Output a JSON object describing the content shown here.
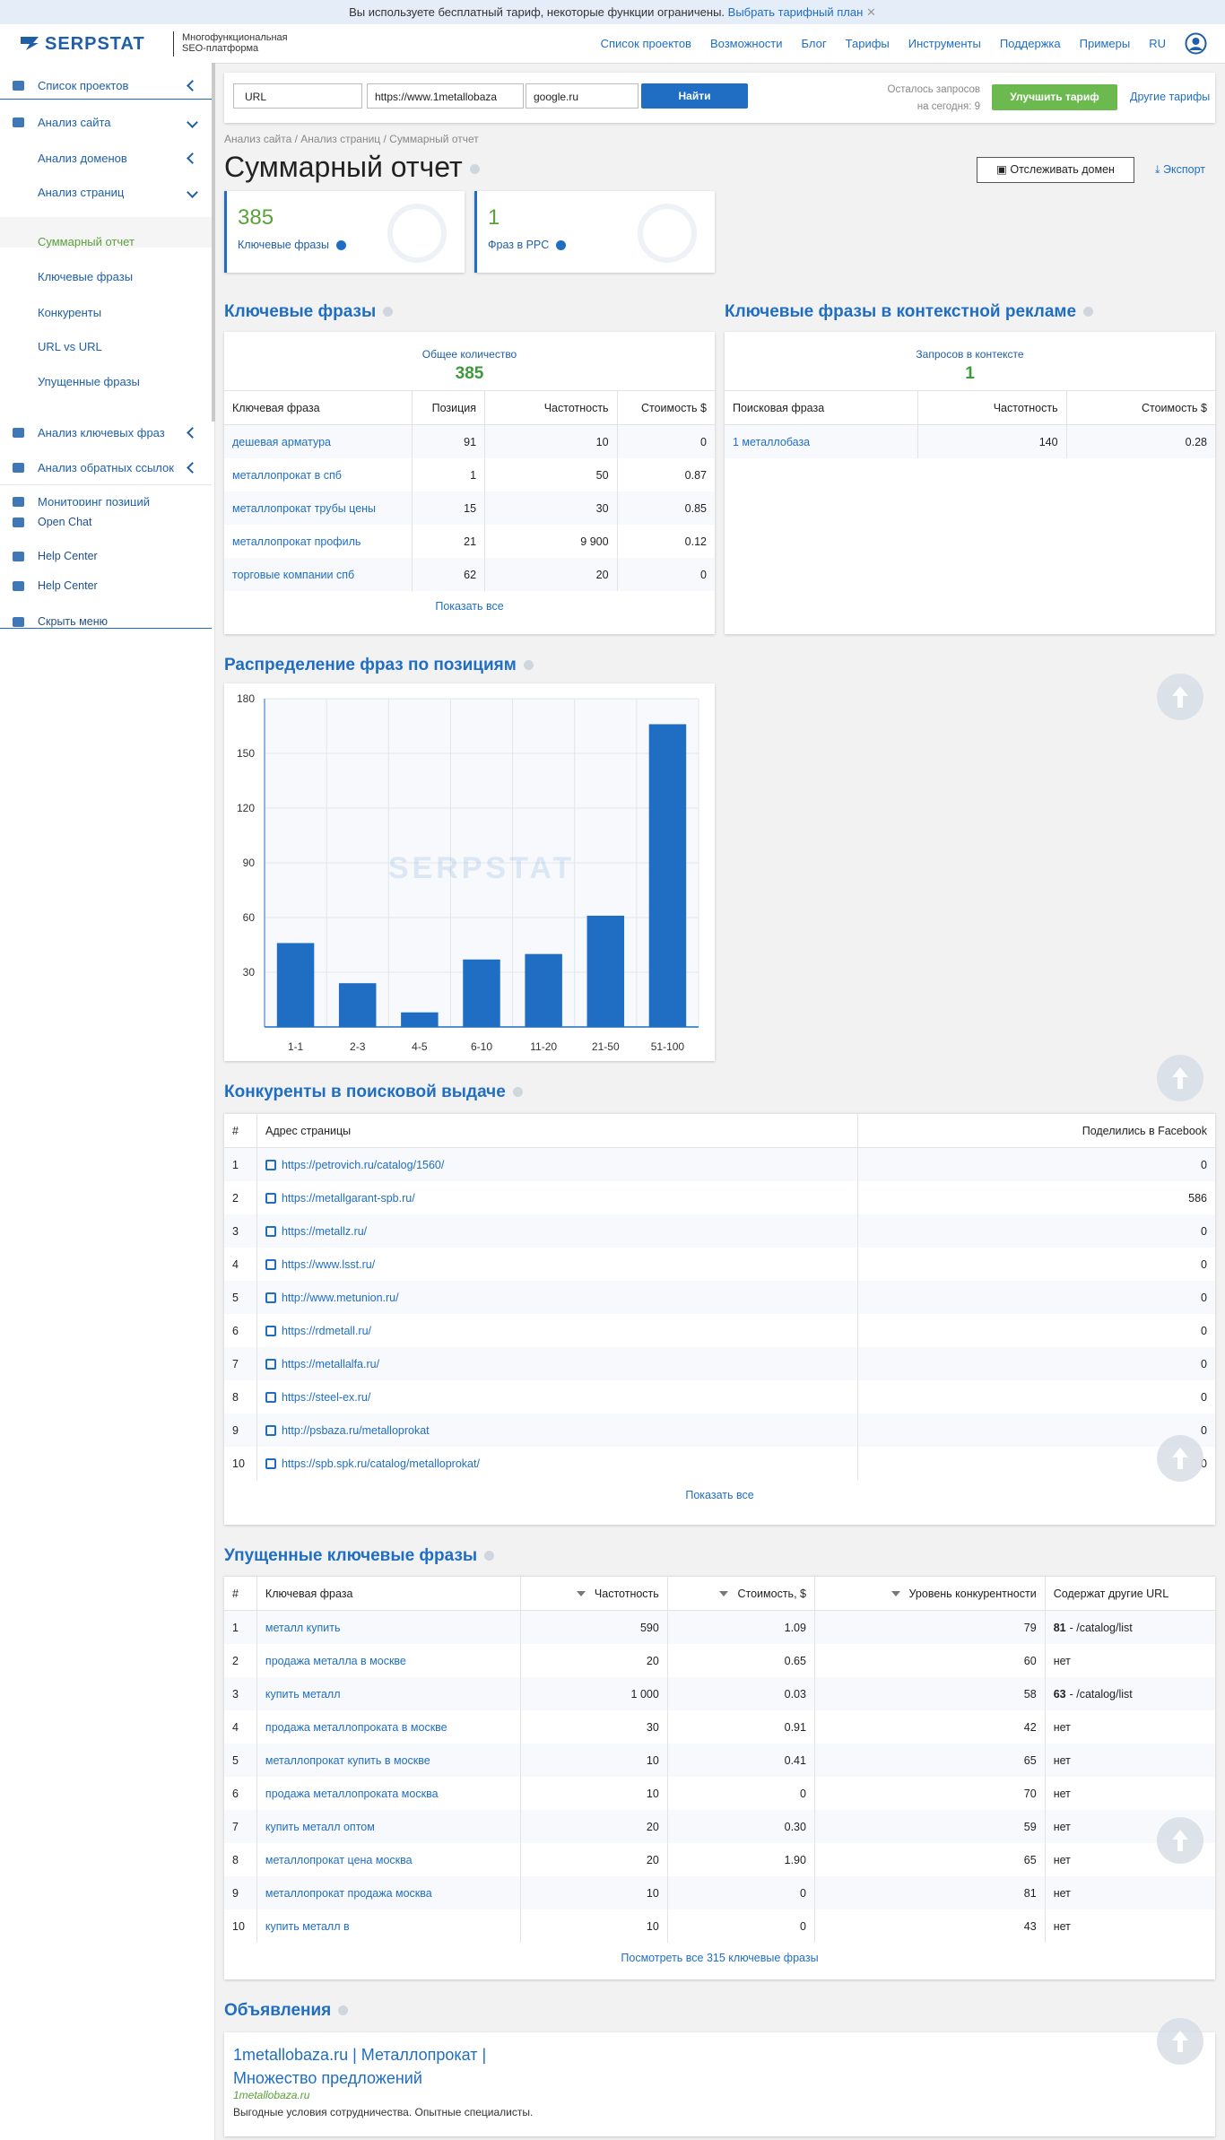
{
  "banner": {
    "text": "Вы используете бесплатный тариф, некоторые функции ограничены.",
    "link": "Выбрать тарифный план"
  },
  "header": {
    "logo": "SERPSTAT",
    "tagline": [
      "Многофункциональная",
      "SEO-платформа"
    ],
    "nav": [
      "Список проектов",
      "Возможности",
      "Блог",
      "Тарифы",
      "Инструменты",
      "Поддержка",
      "Примеры",
      "RU"
    ]
  },
  "sidebar": {
    "items": [
      "Список проектов",
      "Анализ сайта",
      "Анализ доменов",
      "Анализ страниц",
      "Суммарный отчет",
      "Ключевые фразы",
      "Конкуренты",
      "URL vs URL",
      "Упущенные фразы",
      "Анализ ключевых фраз",
      "Анализ обратных ссылок",
      "Мониторинг позиций",
      "Open Chat",
      "Help Center",
      "Help Center",
      "Скрыть меню"
    ]
  },
  "search": {
    "type": "URL",
    "url": "https://www.1metallobaza",
    "engine": "google.ru",
    "button": "Найти",
    "remaining": [
      "Осталось запросов",
      "на сегодня: 9"
    ],
    "upgrade": "Улучшить тариф",
    "other_plans": "Другие тарифы"
  },
  "breadcrumb": "Анализ сайта / Анализ страниц / Суммарный отчет",
  "title": "Суммарный отчет",
  "track": "Отслеживать домен",
  "export": "Экспорт",
  "cards": [
    {
      "value": 385,
      "label": "Ключевые фразы"
    },
    {
      "value": 1,
      "label": "Фраз в PPC"
    }
  ],
  "keywords": {
    "title": "Ключевые фразы",
    "total_label": "Общее количество",
    "total": 385,
    "columns": [
      "Ключевая фраза",
      "Позиция",
      "Частотность",
      "Стоимость $"
    ],
    "rows": [
      [
        "дешевая арматура",
        91,
        10,
        0
      ],
      [
        "металлопрокат в спб",
        1,
        50,
        0.87
      ],
      [
        "металлопрокат трубы цены",
        15,
        30,
        0.85
      ],
      [
        "металлопрокат профиль",
        21,
        "9 900",
        0.12
      ],
      [
        "торговые компании спб",
        62,
        20,
        0
      ]
    ],
    "show_all": "Показать все"
  },
  "ppc": {
    "title": "Ключевые фразы в контекстной рекламе",
    "total_label": "Запросов в контексте",
    "total": 1,
    "columns": [
      "Поисковая фраза",
      "Частотность",
      "Стоимость $"
    ],
    "rows": [
      [
        "1 металлобаза",
        140,
        0.28
      ]
    ]
  },
  "chart_data": {
    "type": "bar",
    "title": "Распределение фраз по позициям",
    "categories": [
      "1-1",
      "2-3",
      "4-5",
      "6-10",
      "11-20",
      "21-50",
      "51-100"
    ],
    "values": [
      46,
      24,
      8,
      37,
      40,
      61,
      166
    ],
    "color": "#1f6ec4",
    "ylim": [
      0,
      180
    ],
    "yticks": [
      30,
      60,
      90,
      120,
      150,
      180
    ],
    "grid": true
  },
  "competitors": {
    "title": "Конкуренты в поисковой выдаче",
    "columns": [
      "#",
      "Адрес страницы",
      "Поделились в Facebook"
    ],
    "rows": [
      [
        1,
        "https://petrovich.ru/catalog/1560/",
        0
      ],
      [
        2,
        "https://metallgarant-spb.ru/",
        586
      ],
      [
        3,
        "https://metallz.ru/",
        0
      ],
      [
        4,
        "https://www.lsst.ru/",
        0
      ],
      [
        5,
        "http://www.metunion.ru/",
        0
      ],
      [
        6,
        "https://rdmetall.ru/",
        0
      ],
      [
        7,
        "https://metallalfa.ru/",
        0
      ],
      [
        8,
        "https://steel-ex.ru/",
        0
      ],
      [
        9,
        "http://psbaza.ru/metalloprokat",
        0
      ],
      [
        10,
        "https://spb.spk.ru/catalog/metalloprokat/",
        0
      ]
    ],
    "show_all": "Показать все"
  },
  "missed": {
    "title": "Упущенные ключевые фразы",
    "columns": [
      "#",
      "Ключевая фраза",
      "Частотность",
      "Стоимость, $",
      "Уровень конкурентности",
      "Содержат другие URL"
    ],
    "rows": [
      [
        1,
        "металл купить",
        590,
        1.09,
        79,
        {
          "count": 81,
          "url": "- /catalog/list"
        }
      ],
      [
        2,
        "продажа металла в москве",
        20,
        0.65,
        60,
        "нет"
      ],
      [
        3,
        "купить металл",
        "1 000",
        0.03,
        58,
        {
          "count": 63,
          "url": "- /catalog/list"
        }
      ],
      [
        4,
        "продажа металлопроката в москве",
        30,
        0.91,
        42,
        "нет"
      ],
      [
        5,
        "металлопрокат купить в москве",
        10,
        0.41,
        65,
        "нет"
      ],
      [
        6,
        "продажа металлопроката москва",
        10,
        0,
        70,
        "нет"
      ],
      [
        7,
        "купить металл оптом",
        20,
        "0.30",
        59,
        "нет"
      ],
      [
        8,
        "металлопрокат цена москва",
        20,
        "1.90",
        65,
        "нет"
      ],
      [
        9,
        "металлопрокат продажа москва",
        10,
        0,
        81,
        "нет"
      ],
      [
        10,
        "купить металл в",
        10,
        0,
        43,
        "нет"
      ]
    ],
    "see_all": "Посмотреть все 315 ключевые фразы"
  },
  "ads": {
    "title": "Объявления",
    "headline": [
      "1metallobaza.ru | Металлопрокат |",
      "Множество предложений"
    ],
    "domain": "1metallobaza.ru",
    "text": "Выгодные условия сотрудничества. Опытные специалисты."
  }
}
